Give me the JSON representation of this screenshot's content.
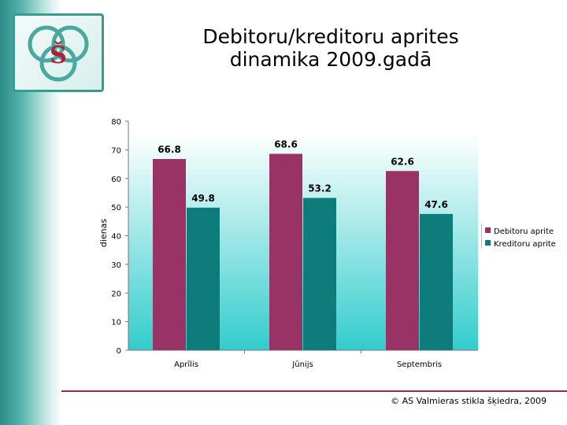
{
  "title_line1": "Debitoru/kreditoru aprites",
  "title_line2": "dinamika 2009.gadā",
  "footer": "© AS Valmieras stikla šķiedra, 2009",
  "logo_icon": "company-logo-icon",
  "colors": {
    "debitoru": "#993366",
    "kreditoru": "#0f7c7c",
    "plot_bg_top": "#ffffff",
    "plot_bg_bottom": "#33cccc",
    "accent_line": "#8e2d4b"
  },
  "chart_data": {
    "type": "bar",
    "categories": [
      "Aprīlis",
      "Jūnijs",
      "Septembris"
    ],
    "series": [
      {
        "name": "Debitoru aprite",
        "values": [
          66.8,
          68.6,
          62.6
        ]
      },
      {
        "name": "Kreditoru aprite",
        "values": [
          49.8,
          53.2,
          47.6
        ]
      }
    ],
    "ylabel": "dienas",
    "xlabel": "",
    "ylim": [
      0,
      80
    ],
    "yticks": [
      0,
      10,
      20,
      30,
      40,
      50,
      60,
      70,
      80
    ],
    "legend": "right",
    "grid": false,
    "data_labels": true
  }
}
